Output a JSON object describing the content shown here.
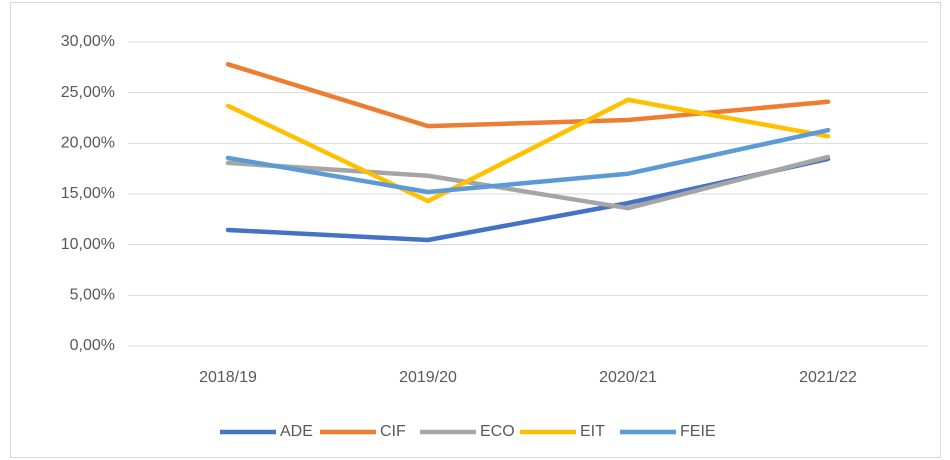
{
  "chart_data": {
    "type": "line",
    "categories": [
      "2018/19",
      "2019/20",
      "2020/21",
      "2021/22"
    ],
    "series": [
      {
        "name": "ADE",
        "color": "#4472c4",
        "values": [
          11.45,
          10.46,
          14.1,
          18.46
        ]
      },
      {
        "name": "CIF",
        "color": "#ed7d31",
        "values": [
          27.8,
          21.7,
          22.3,
          24.1
        ]
      },
      {
        "name": "ECO",
        "color": "#a5a5a5",
        "values": [
          18.07,
          16.8,
          13.6,
          18.66
        ]
      },
      {
        "name": "EIT",
        "color": "#ffc000",
        "values": [
          23.7,
          14.3,
          24.3,
          20.7
        ]
      },
      {
        "name": "FEIE",
        "color": "#5b9bd5",
        "values": [
          18.56,
          15.2,
          17.0,
          21.3
        ]
      }
    ],
    "ylim": [
      0,
      30
    ],
    "yticks": [
      {
        "value": 0,
        "label": "0,00%"
      },
      {
        "value": 5,
        "label": "5,00%"
      },
      {
        "value": 10,
        "label": "10,00%"
      },
      {
        "value": 15,
        "label": "15,00%"
      },
      {
        "value": 20,
        "label": "20,00%"
      },
      {
        "value": 25,
        "label": "25,00%"
      },
      {
        "value": 30,
        "label": "30,00%"
      }
    ],
    "grid": true,
    "legend": "bottom"
  }
}
